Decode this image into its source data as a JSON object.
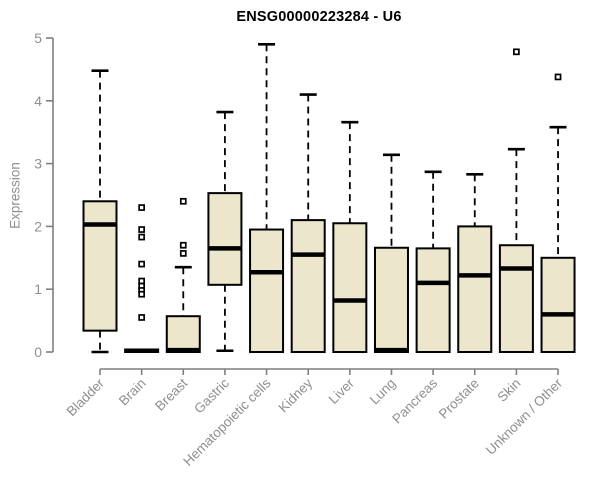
{
  "chart_data": {
    "type": "boxplot",
    "title": "ENSG00000223284 - U6",
    "ylabel": "Expression",
    "xlabel": "",
    "ylim": [
      0,
      5
    ],
    "yticks": [
      "0",
      "1",
      "2",
      "3",
      "4",
      "5"
    ],
    "grid": false,
    "legend": "none",
    "categories": [
      "Bladder",
      "Brain",
      "Breast",
      "Gastric",
      "Hematopoietic cells",
      "Kidney",
      "Liver",
      "Lung",
      "Pancreas",
      "Prostate",
      "Skin",
      "Unknown / Other"
    ],
    "series": [
      {
        "name": "Bladder",
        "low": 0,
        "q1": 0.34,
        "median": 2.03,
        "q3": 2.4,
        "high": 4.48,
        "outliers": []
      },
      {
        "name": "Brain",
        "low": 0,
        "q1": 0,
        "median": 0.02,
        "q3": 0.04,
        "high": 0.05,
        "outliers": [
          2.3,
          1.95,
          1.83,
          1.4,
          1.13,
          1.05,
          0.98,
          0.92,
          0.55
        ]
      },
      {
        "name": "Breast",
        "low": 0,
        "q1": 0,
        "median": 0.03,
        "q3": 0.57,
        "high": 1.35,
        "outliers": [
          2.4,
          1.7,
          1.57
        ]
      },
      {
        "name": "Gastric",
        "low": 0.02,
        "q1": 1.07,
        "median": 1.65,
        "q3": 2.53,
        "high": 3.82,
        "outliers": []
      },
      {
        "name": "Hematopoietic cells",
        "low": 0,
        "q1": 0,
        "median": 1.27,
        "q3": 1.95,
        "high": 4.9,
        "outliers": []
      },
      {
        "name": "Kidney",
        "low": 0,
        "q1": 0,
        "median": 1.55,
        "q3": 2.1,
        "high": 4.1,
        "outliers": []
      },
      {
        "name": "Liver",
        "low": 0,
        "q1": 0,
        "median": 0.82,
        "q3": 2.05,
        "high": 3.66,
        "outliers": []
      },
      {
        "name": "Lung",
        "low": 0,
        "q1": 0,
        "median": 0.03,
        "q3": 1.66,
        "high": 3.14,
        "outliers": []
      },
      {
        "name": "Pancreas",
        "low": 0,
        "q1": 0,
        "median": 1.1,
        "q3": 1.65,
        "high": 2.87,
        "outliers": []
      },
      {
        "name": "Prostate",
        "low": 0,
        "q1": 0,
        "median": 1.22,
        "q3": 2.0,
        "high": 2.83,
        "outliers": []
      },
      {
        "name": "Skin",
        "low": 0,
        "q1": 0,
        "median": 1.33,
        "q3": 1.7,
        "high": 3.23,
        "outliers": [
          4.78
        ]
      },
      {
        "name": "Unknown / Other",
        "low": 0,
        "q1": 0,
        "median": 0.6,
        "q3": 1.5,
        "high": 3.58,
        "outliers": [
          4.38
        ]
      }
    ],
    "colors": {
      "box_fill": "#ece7cc",
      "box_stroke": "#000000",
      "median": "#000000",
      "whisker": "#000000",
      "axis_line": "#7f7f7f",
      "tick_text": "#8f8f8f",
      "title_text": "#000000",
      "background": "#ffffff"
    }
  }
}
